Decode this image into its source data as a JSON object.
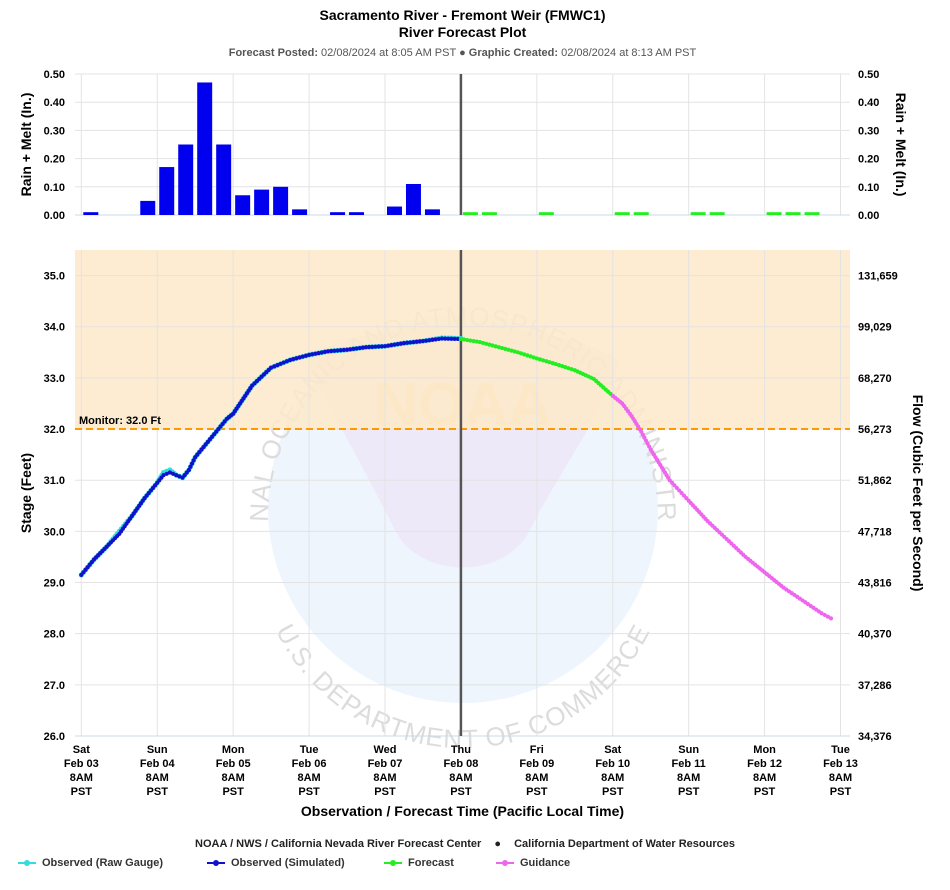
{
  "header": {
    "title": "Sacramento River - Fremont Weir (FMWC1)",
    "subtitle": "River Forecast Plot",
    "posted_label": "Forecast Posted:",
    "posted_value": "02/08/2024 at 8:05 AM PST",
    "separator": "●",
    "created_label": "Graphic Created:",
    "created_value": "02/08/2024 at 8:13 AM PST"
  },
  "footer": {
    "agency": "NOAA / NWS / California Nevada River Forecast Center",
    "bullet": "●",
    "partner": "California Department of Water Resources"
  },
  "legend": [
    {
      "label": "Observed (Raw Gauge)",
      "color": "#33dddd"
    },
    {
      "label": "Observed (Simulated)",
      "color": "#1111cc"
    },
    {
      "label": "Forecast",
      "color": "#22ee22"
    },
    {
      "label": "Guidance",
      "color": "#ee66ee"
    }
  ],
  "watermark": {
    "logo_text": "NOAA",
    "ring_top": "NATIONAL OCEANIC AND ATMOSPHERIC ADMINISTRATION",
    "ring_bottom": "U.S. DEPARTMENT OF COMMERCE"
  },
  "chart_data": [
    {
      "type": "bar",
      "title": "",
      "ylabel": "Rain + Melt (In.)",
      "ylabel_right": "Rain + Melt (In.)",
      "ylim": [
        0,
        0.5
      ],
      "yticks": [
        "0.00",
        "0.10",
        "0.20",
        "0.30",
        "0.40",
        "0.50"
      ],
      "grid": true,
      "x_units": "hours after Sat Feb 03 8AM PST",
      "bar_width_hours": 6,
      "series": [
        {
          "name": "Observed",
          "color": "#0000ee",
          "x": [
            3,
            21,
            27,
            33,
            39,
            45,
            51,
            57,
            63,
            69,
            81,
            87,
            99,
            105,
            111
          ],
          "values": [
            0.01,
            0.05,
            0.17,
            0.25,
            0.47,
            0.25,
            0.07,
            0.09,
            0.1,
            0.02,
            0.01,
            0.01,
            0.03,
            0.11,
            0.02
          ]
        },
        {
          "name": "Forecast",
          "color": "#22ee22",
          "x": [
            123,
            129,
            147,
            171,
            177,
            195,
            201,
            219,
            225,
            231
          ],
          "values": [
            0.01,
            0.01,
            0.01,
            0.01,
            0.01,
            0.01,
            0.01,
            0.01,
            0.01,
            0.01
          ]
        }
      ]
    },
    {
      "type": "line",
      "xlabel": "Observation / Forecast Time (Pacific Local Time)",
      "ylabel": "Stage (Feet)",
      "ylabel_right": "Flow (Cubic Feet per Second)",
      "ylim": [
        26.0,
        35.5
      ],
      "yticks": [
        "26.0",
        "27.0",
        "28.0",
        "29.0",
        "30.0",
        "31.0",
        "32.0",
        "33.0",
        "34.0",
        "35.0"
      ],
      "yticks_right": [
        "34,376",
        "37,286",
        "40,370",
        "43,816",
        "47,718",
        "51,862",
        "56,273",
        "68,270",
        "99,029",
        "131,659"
      ],
      "xticks": [
        {
          "day": "Sat",
          "date": "Feb 03",
          "time": "8AM",
          "tz": "PST",
          "x": 0
        },
        {
          "day": "Sun",
          "date": "Feb 04",
          "time": "8AM",
          "tz": "PST",
          "x": 24
        },
        {
          "day": "Mon",
          "date": "Feb 05",
          "time": "8AM",
          "tz": "PST",
          "x": 48
        },
        {
          "day": "Tue",
          "date": "Feb 06",
          "time": "8AM",
          "tz": "PST",
          "x": 72
        },
        {
          "day": "Wed",
          "date": "Feb 07",
          "time": "8AM",
          "tz": "PST",
          "x": 96
        },
        {
          "day": "Thu",
          "date": "Feb 08",
          "time": "8AM",
          "tz": "PST",
          "x": 120
        },
        {
          "day": "Fri",
          "date": "Feb 09",
          "time": "8AM",
          "tz": "PST",
          "x": 144
        },
        {
          "day": "Sat",
          "date": "Feb 10",
          "time": "8AM",
          "tz": "PST",
          "x": 168
        },
        {
          "day": "Sun",
          "date": "Feb 11",
          "time": "8AM",
          "tz": "PST",
          "x": 192
        },
        {
          "day": "Mon",
          "date": "Feb 12",
          "time": "8AM",
          "tz": "PST",
          "x": 216
        },
        {
          "day": "Tue",
          "date": "Feb 13",
          "time": "8AM",
          "tz": "PST",
          "x": 240
        }
      ],
      "x_range": [
        -2,
        243
      ],
      "now_x": 120,
      "monitor_stage": 32.0,
      "monitor_label": "Monitor: 32.0 Ft",
      "monitor_color": "#ff9900",
      "shade_color": "#fde9c9",
      "grid": true,
      "series": [
        {
          "name": "Observed (Raw Gauge)",
          "color": "#33dddd",
          "x": [
            0,
            4,
            8,
            12,
            16,
            20,
            24,
            26,
            28,
            30,
            32,
            34,
            36,
            38,
            40,
            42,
            44,
            46,
            48,
            54,
            60,
            66,
            72,
            78,
            84,
            90,
            96,
            102,
            108,
            114,
            120
          ],
          "y": [
            29.15,
            29.45,
            29.7,
            30.0,
            30.3,
            30.65,
            30.95,
            31.15,
            31.2,
            31.1,
            31.05,
            31.2,
            31.45,
            31.6,
            31.75,
            31.9,
            32.05,
            32.2,
            32.3,
            32.85,
            33.2,
            33.35,
            33.45,
            33.52,
            33.55,
            33.6,
            33.62,
            33.68,
            33.72,
            33.78,
            33.77
          ]
        },
        {
          "name": "Observed (Simulated)",
          "color": "#1111cc",
          "x": [
            0,
            4,
            8,
            12,
            16,
            20,
            24,
            26,
            28,
            30,
            32,
            34,
            36,
            38,
            40,
            42,
            44,
            46,
            48,
            54,
            60,
            66,
            72,
            78,
            84,
            90,
            96,
            102,
            108,
            114,
            120
          ],
          "y": [
            29.15,
            29.45,
            29.7,
            29.95,
            30.3,
            30.65,
            30.95,
            31.1,
            31.15,
            31.1,
            31.05,
            31.2,
            31.45,
            31.6,
            31.75,
            31.9,
            32.05,
            32.2,
            32.3,
            32.85,
            33.2,
            33.35,
            33.45,
            33.52,
            33.55,
            33.6,
            33.62,
            33.68,
            33.72,
            33.77,
            33.76
          ]
        },
        {
          "name": "Forecast",
          "color": "#22ee22",
          "x": [
            120,
            126,
            132,
            138,
            144,
            150,
            156,
            162,
            168
          ],
          "y": [
            33.76,
            33.7,
            33.6,
            33.5,
            33.38,
            33.27,
            33.15,
            32.98,
            32.65
          ]
        },
        {
          "name": "Guidance",
          "color": "#ee66ee",
          "x": [
            168,
            171,
            174,
            177,
            180,
            183,
            186,
            189,
            192,
            198,
            204,
            210,
            216,
            222,
            228,
            234,
            237
          ],
          "y": [
            32.65,
            32.5,
            32.25,
            31.95,
            31.6,
            31.3,
            31.0,
            30.8,
            30.6,
            30.2,
            29.85,
            29.5,
            29.2,
            28.9,
            28.65,
            28.4,
            28.3
          ]
        }
      ]
    }
  ]
}
